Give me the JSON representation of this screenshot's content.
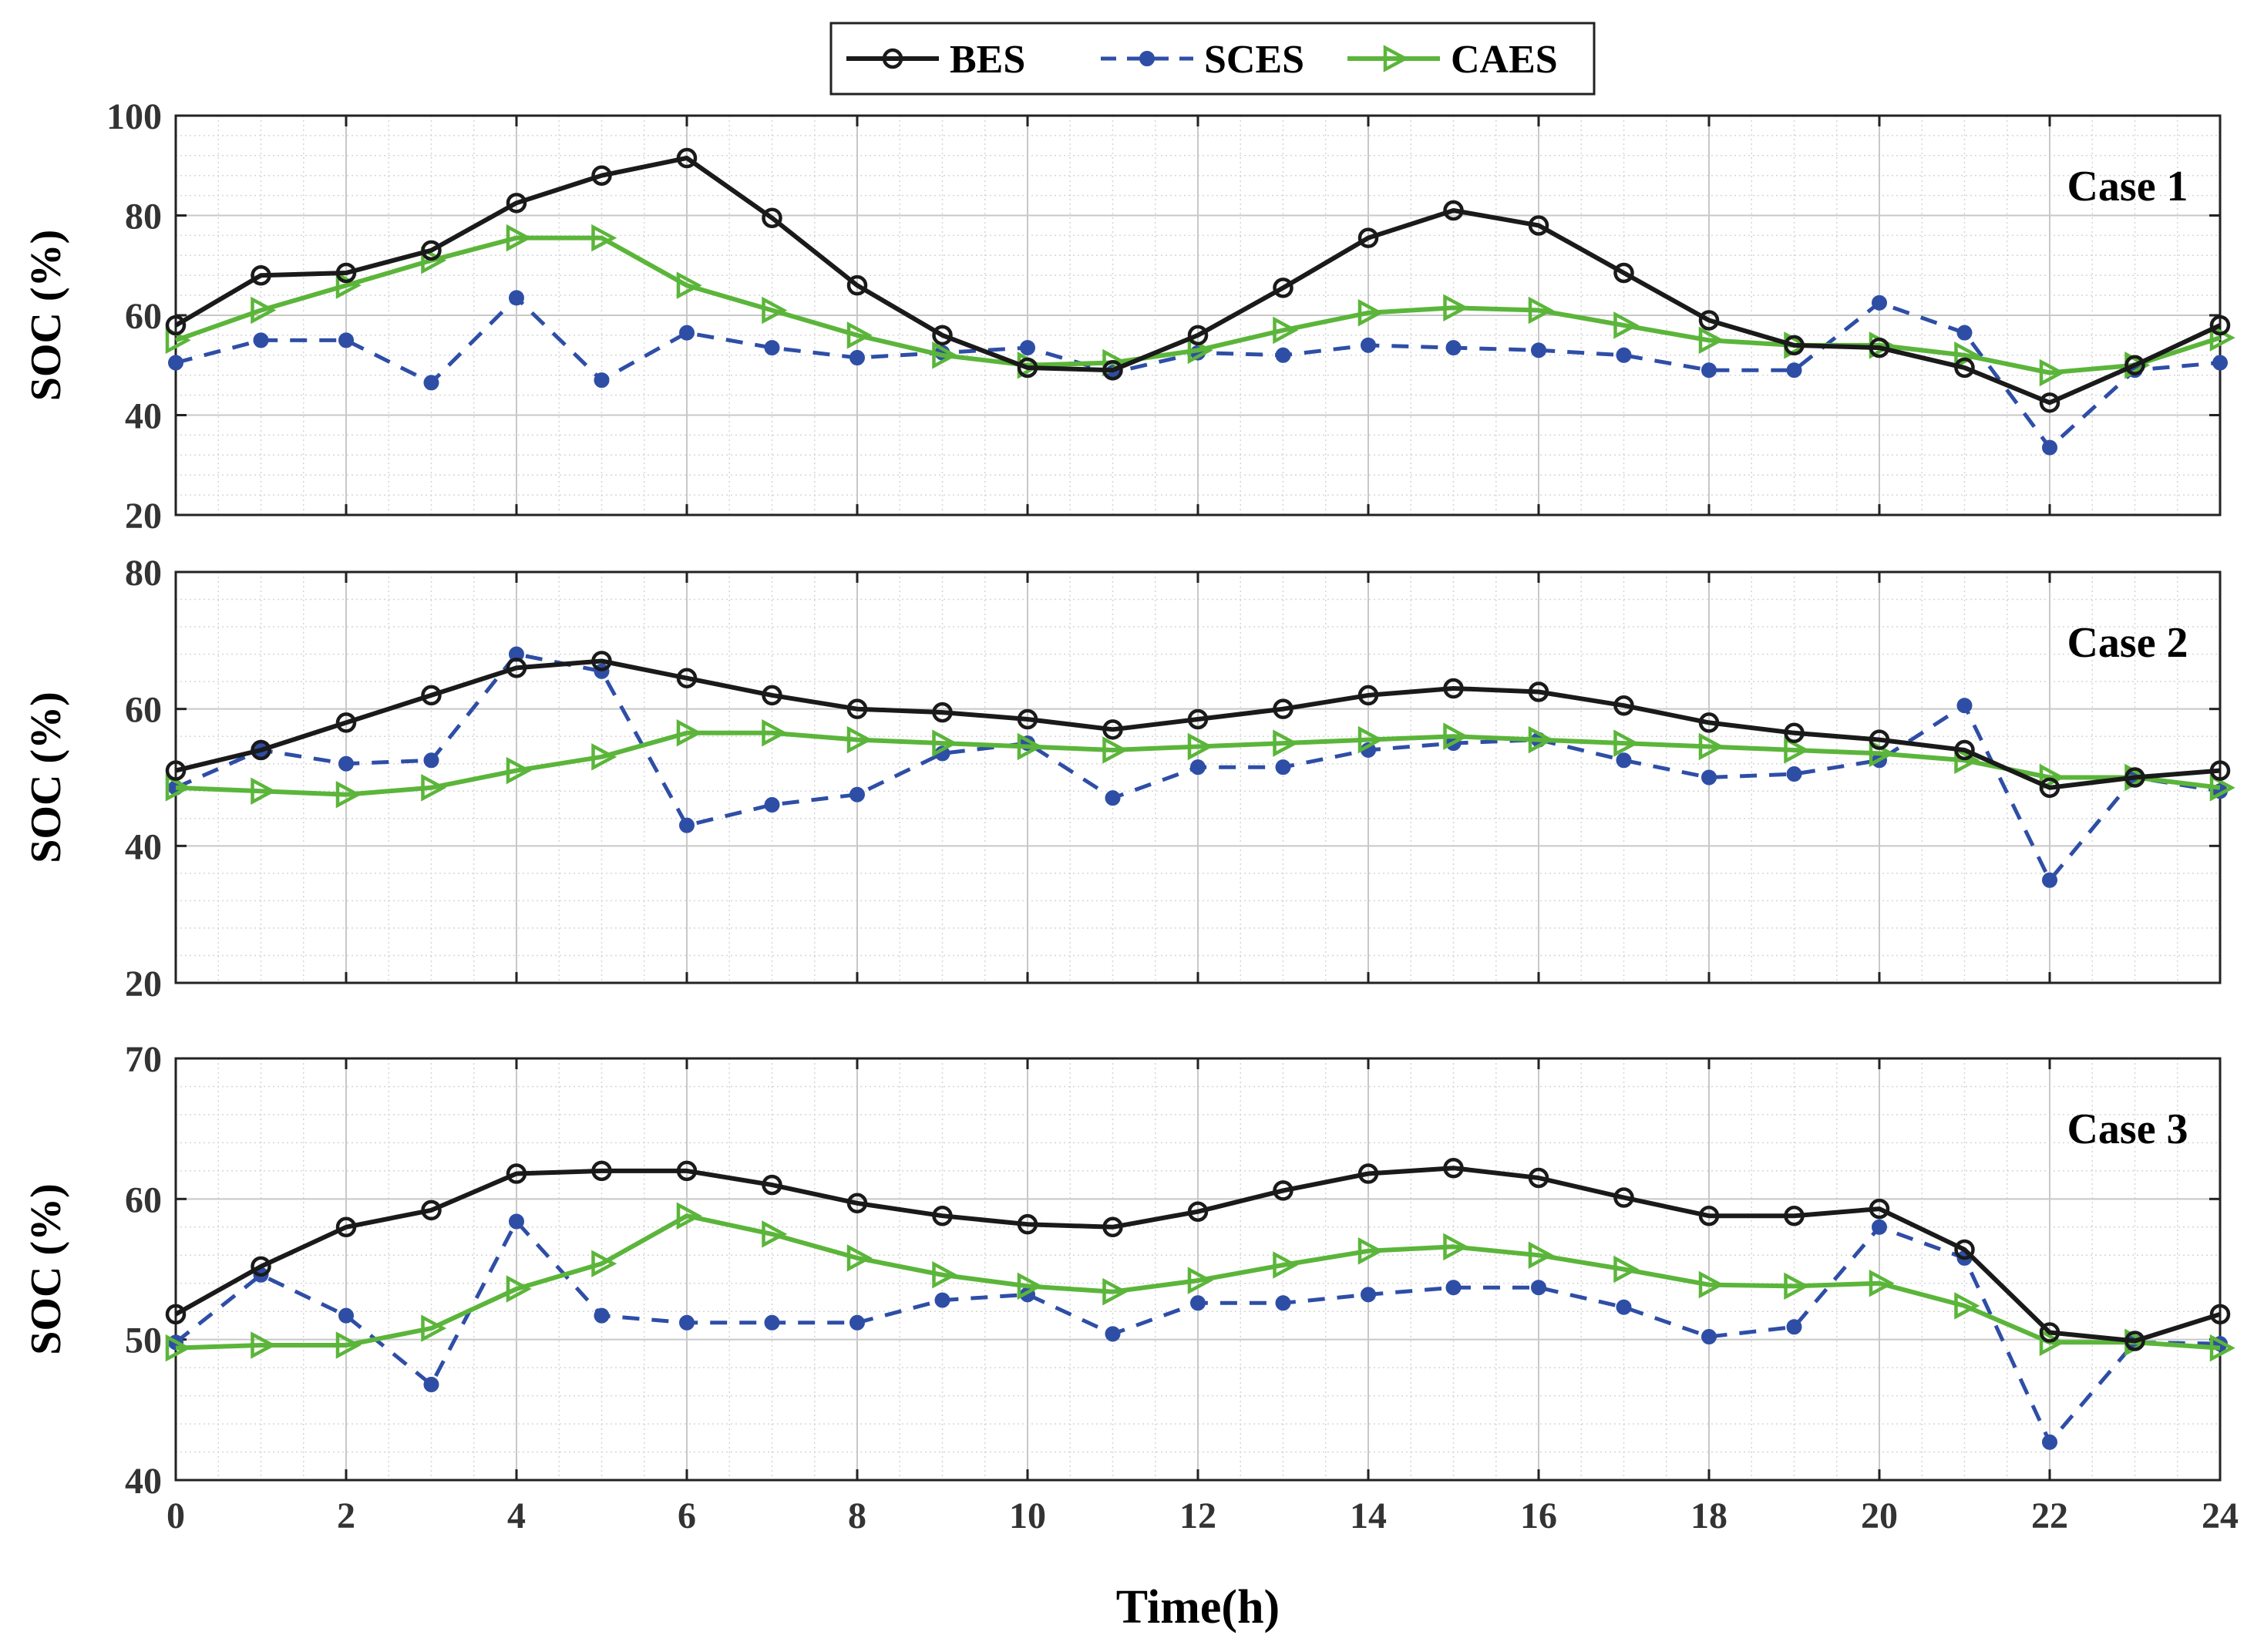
{
  "colors": {
    "BES": "#1a1a1a",
    "SCES": "#2e4ea6",
    "CAES": "#5bb53a",
    "grid": "#c8c8c8",
    "minor_grid": "#d6d6d6"
  },
  "chart_data": [
    {
      "type": "line",
      "label": "Case 1",
      "ylabel": "SOC (%)",
      "ylim": [
        20,
        100
      ],
      "yticks": [
        20,
        40,
        60,
        80,
        100
      ],
      "xlim": [
        0,
        24
      ],
      "grid": true,
      "x": [
        0,
        1,
        2,
        3,
        4,
        5,
        6,
        7,
        8,
        9,
        10,
        11,
        12,
        13,
        14,
        15,
        16,
        17,
        18,
        19,
        20,
        21,
        22,
        23,
        24
      ],
      "series": [
        {
          "name": "BES",
          "values": [
            58,
            68,
            68.5,
            73,
            82.5,
            88,
            91.5,
            79.5,
            66,
            56,
            49.5,
            49,
            56,
            65.5,
            75.5,
            81,
            78,
            68.5,
            59,
            54,
            53.5,
            49.5,
            42.5,
            50,
            58
          ]
        },
        {
          "name": "SCES",
          "values": [
            50.5,
            55,
            55,
            46.5,
            63.5,
            47,
            56.5,
            53.5,
            51.5,
            52.5,
            53.5,
            48.5,
            52.5,
            52,
            54,
            53.5,
            53,
            52,
            49,
            49,
            62.5,
            56.5,
            33.5,
            49,
            50.5
          ]
        },
        {
          "name": "CAES",
          "values": [
            55,
            61,
            66,
            71,
            75.5,
            75.5,
            66,
            61,
            56,
            52,
            50,
            50.5,
            53,
            57,
            60.5,
            61.5,
            61,
            58,
            55,
            54,
            54,
            52,
            48.5,
            50,
            55.5
          ]
        }
      ]
    },
    {
      "type": "line",
      "label": "Case 2",
      "ylabel": "SOC (%)",
      "ylim": [
        20,
        80
      ],
      "yticks": [
        20,
        40,
        60,
        80
      ],
      "xlim": [
        0,
        24
      ],
      "grid": true,
      "x": [
        0,
        1,
        2,
        3,
        4,
        5,
        6,
        7,
        8,
        9,
        10,
        11,
        12,
        13,
        14,
        15,
        16,
        17,
        18,
        19,
        20,
        21,
        22,
        23,
        24
      ],
      "series": [
        {
          "name": "BES",
          "values": [
            51,
            54,
            58,
            62,
            66,
            67,
            64.5,
            62,
            60,
            59.5,
            58.5,
            57,
            58.5,
            60,
            62,
            63,
            62.5,
            60.5,
            58,
            56.5,
            55.5,
            54,
            48.5,
            50,
            51
          ]
        },
        {
          "name": "SCES",
          "values": [
            48.5,
            54,
            52,
            52.5,
            68,
            65.5,
            43,
            46,
            47.5,
            53.5,
            55,
            47,
            51.5,
            51.5,
            54,
            55,
            55.5,
            52.5,
            50,
            50.5,
            52.5,
            60.5,
            35,
            50,
            48
          ]
        },
        {
          "name": "CAES",
          "values": [
            48.5,
            48,
            47.5,
            48.5,
            51,
            53,
            56.5,
            56.5,
            55.5,
            55,
            54.5,
            54,
            54.5,
            55,
            55.5,
            56,
            55.5,
            55,
            54.5,
            54,
            53.5,
            52.5,
            50,
            50,
            48.5
          ]
        }
      ]
    },
    {
      "type": "line",
      "label": "Case 3",
      "ylabel": "SOC (%)",
      "ylim": [
        40,
        70
      ],
      "yticks": [
        40,
        50,
        60,
        70
      ],
      "xlim": [
        0,
        24
      ],
      "xticks": [
        0,
        2,
        4,
        6,
        8,
        10,
        12,
        14,
        16,
        18,
        20,
        22,
        24
      ],
      "xlabel": "Time(h)",
      "grid": true,
      "x": [
        0,
        1,
        2,
        3,
        4,
        5,
        6,
        7,
        8,
        9,
        10,
        11,
        12,
        13,
        14,
        15,
        16,
        17,
        18,
        19,
        20,
        21,
        22,
        23,
        24
      ],
      "series": [
        {
          "name": "BES",
          "values": [
            51.8,
            55.2,
            58,
            59.2,
            61.8,
            62,
            62,
            61,
            59.7,
            58.8,
            58.2,
            58,
            59.1,
            60.6,
            61.8,
            62.2,
            61.5,
            60.1,
            58.8,
            58.8,
            59.3,
            56.4,
            50.5,
            49.9,
            51.8
          ]
        },
        {
          "name": "SCES",
          "values": [
            49.8,
            54.6,
            51.7,
            46.8,
            58.4,
            51.7,
            51.2,
            51.2,
            51.2,
            52.8,
            53.2,
            50.4,
            52.6,
            52.6,
            53.2,
            53.7,
            53.7,
            52.3,
            50.2,
            50.9,
            58,
            55.8,
            42.7,
            49.8,
            49.7
          ]
        },
        {
          "name": "CAES",
          "values": [
            49.4,
            49.6,
            49.6,
            50.8,
            53.6,
            55.4,
            58.8,
            57.5,
            55.8,
            54.6,
            53.8,
            53.4,
            54.2,
            55.3,
            56.3,
            56.6,
            56,
            55,
            53.9,
            53.8,
            54,
            52.4,
            49.8,
            49.8,
            49.4
          ]
        }
      ]
    }
  ],
  "legend": {
    "placement": "top-center",
    "items": [
      "BES",
      "SCES",
      "CAES"
    ]
  }
}
